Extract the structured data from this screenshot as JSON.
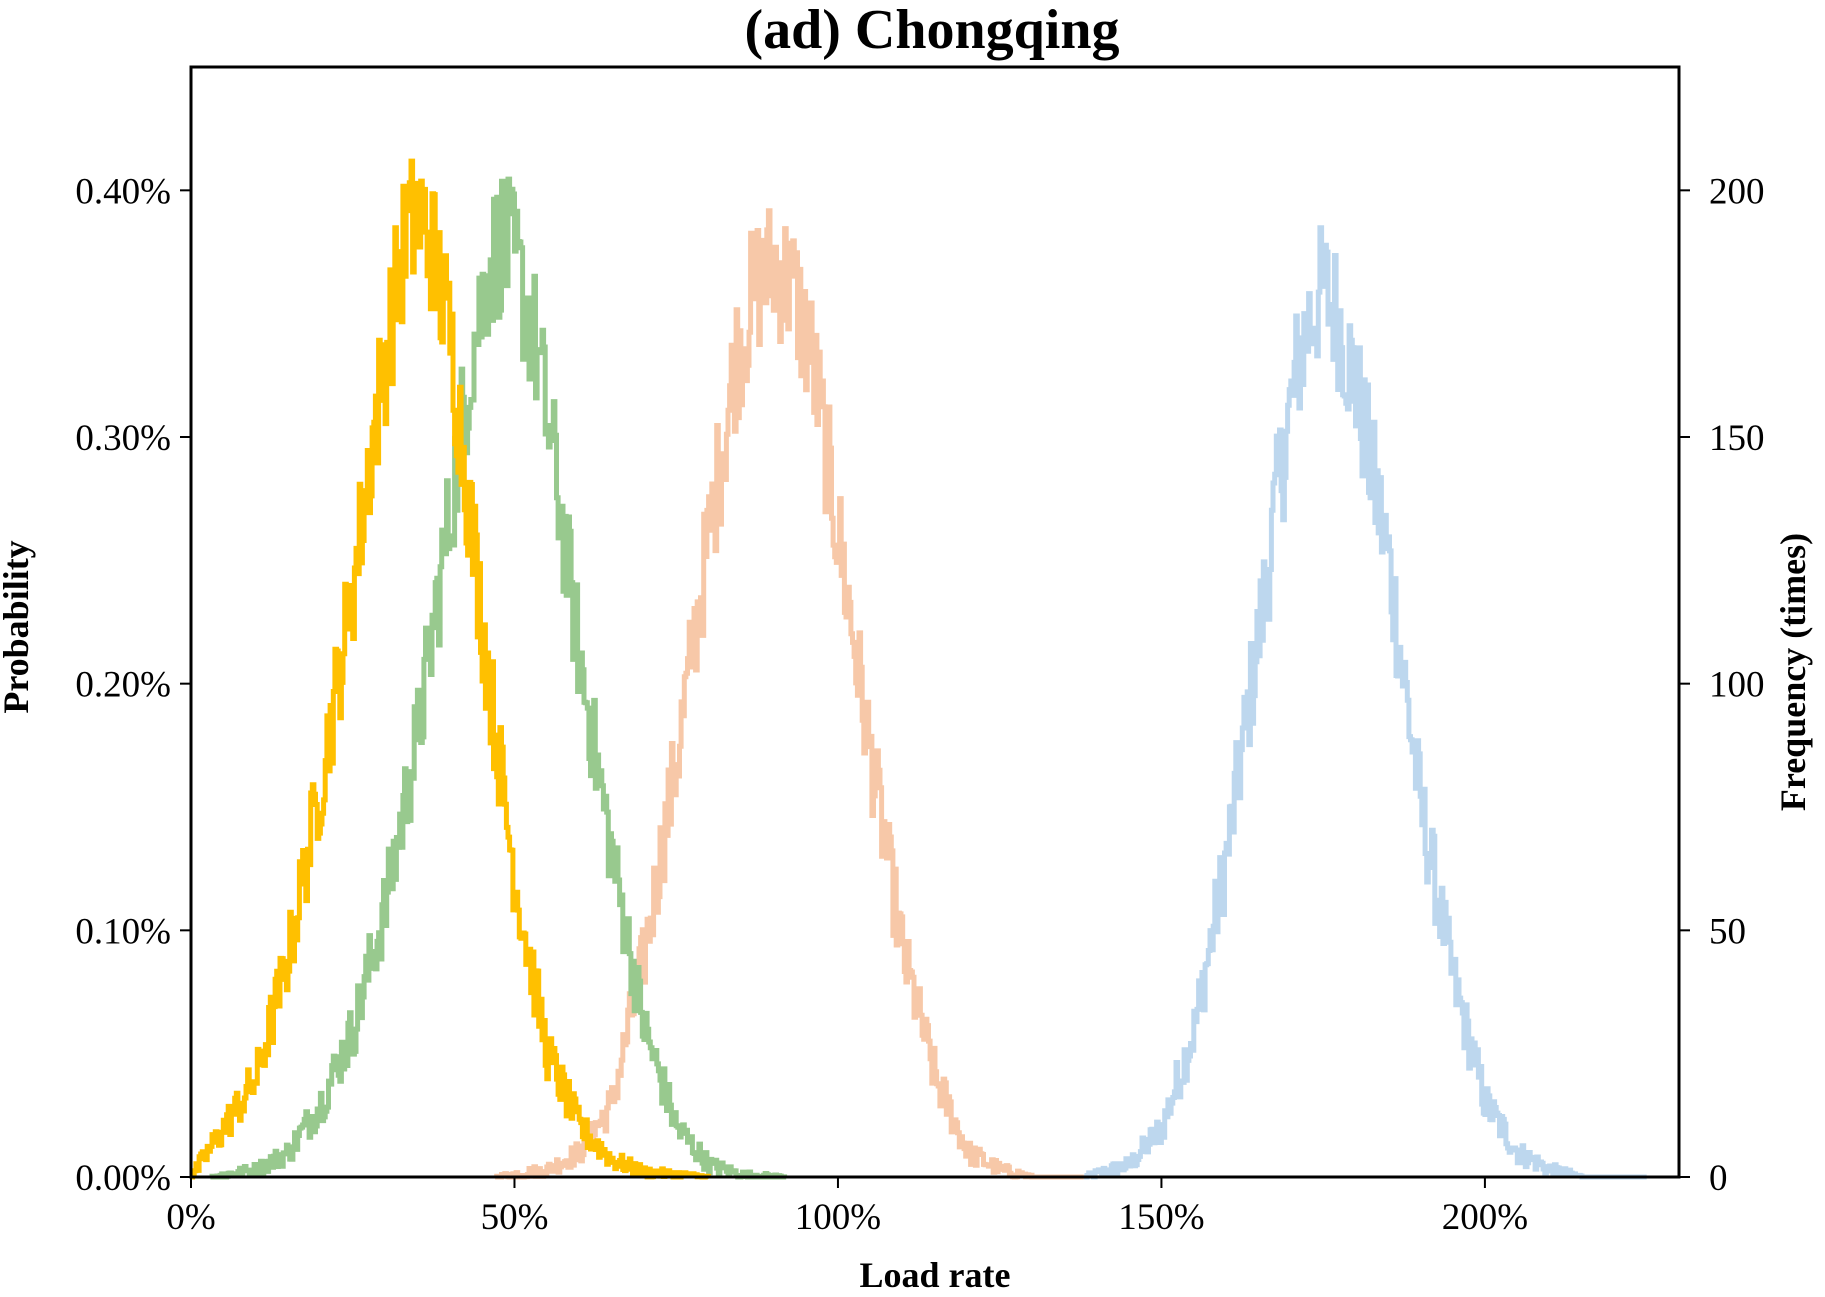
{
  "chart_data": {
    "type": "line",
    "title": "(ad) Chongqing",
    "xlabel": "Load rate",
    "ylabel": "Probability",
    "ylabel_right": "Frequency (times)",
    "xlim": [
      0,
      2.3
    ],
    "ylim": [
      0,
      0.0045
    ],
    "ylim_right": [
      0,
      225
    ],
    "xticks": [
      0,
      0.5,
      1.0,
      1.5,
      2.0
    ],
    "xtick_labels": [
      "0%",
      "50%",
      "100%",
      "150%",
      "200%"
    ],
    "yticks": [
      0,
      0.001,
      0.002,
      0.003,
      0.004
    ],
    "ytick_labels": [
      "0.00%",
      "0.10%",
      "0.20%",
      "0.30%",
      "0.40%"
    ],
    "yticks_right": [
      0,
      50,
      100,
      150,
      200
    ],
    "ytick_labels_right": [
      "0",
      "50",
      "100",
      "150",
      "200"
    ],
    "grid": false,
    "series": [
      {
        "color": "#FFC000",
        "x": [
          0.0,
          0.05,
          0.1,
          0.15,
          0.2,
          0.25,
          0.28,
          0.31,
          0.33,
          0.35,
          0.37,
          0.4,
          0.43,
          0.46,
          0.5,
          0.55,
          0.6,
          0.65,
          0.7,
          0.75,
          0.8
        ],
        "y": [
          0.0,
          0.0002,
          0.0004,
          0.0009,
          0.0016,
          0.0024,
          0.003,
          0.0035,
          0.0038,
          0.0039,
          0.0038,
          0.0034,
          0.0027,
          0.002,
          0.0012,
          0.0005,
          0.0002,
          7e-05,
          2e-05,
          1e-05,
          0.0
        ]
      },
      {
        "color": "#98C98E",
        "x": [
          0.03,
          0.1,
          0.15,
          0.2,
          0.25,
          0.3,
          0.35,
          0.4,
          0.43,
          0.46,
          0.48,
          0.5,
          0.53,
          0.56,
          0.6,
          0.65,
          0.7,
          0.75,
          0.8,
          0.85,
          0.92
        ],
        "y": [
          0.0,
          3e-05,
          0.0001,
          0.0003,
          0.0006,
          0.0011,
          0.0018,
          0.0027,
          0.0033,
          0.0037,
          0.0038,
          0.0037,
          0.0034,
          0.0029,
          0.0021,
          0.0013,
          0.0006,
          0.0002,
          5e-05,
          1e-05,
          0.0
        ]
      },
      {
        "color": "#F7C8A8",
        "x": [
          0.47,
          0.55,
          0.6,
          0.65,
          0.7,
          0.75,
          0.8,
          0.84,
          0.87,
          0.9,
          0.93,
          0.96,
          1.0,
          1.05,
          1.1,
          1.15,
          1.2,
          1.25,
          1.3,
          1.38
        ],
        "y": [
          0.0,
          3e-05,
          0.0001,
          0.0003,
          0.0009,
          0.0017,
          0.0026,
          0.0033,
          0.0036,
          0.0037,
          0.0036,
          0.0033,
          0.0026,
          0.0017,
          0.0009,
          0.0004,
          0.0001,
          3e-05,
          0.0,
          0.0
        ]
      },
      {
        "color": "#BDD7EE",
        "x": [
          1.38,
          1.45,
          1.5,
          1.55,
          1.6,
          1.65,
          1.68,
          1.71,
          1.73,
          1.75,
          1.77,
          1.8,
          1.85,
          1.9,
          1.95,
          2.0,
          2.05,
          2.1,
          2.15,
          2.25
        ],
        "y": [
          0.0,
          5e-05,
          0.0002,
          0.0006,
          0.0013,
          0.0022,
          0.0028,
          0.0033,
          0.0035,
          0.0036,
          0.0035,
          0.0032,
          0.0025,
          0.0015,
          0.0008,
          0.0003,
          0.0001,
          3e-05,
          0.0,
          0.0
        ]
      }
    ]
  }
}
